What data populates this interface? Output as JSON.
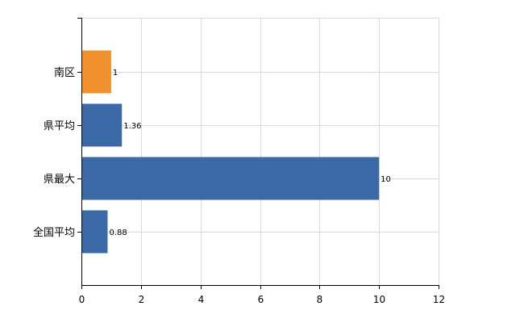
{
  "chart_data": {
    "type": "bar",
    "orientation": "horizontal",
    "categories": [
      "南区",
      "県平均",
      "県最大",
      "全国平均"
    ],
    "values": [
      1,
      1.36,
      10,
      0.88
    ],
    "value_labels": [
      "1",
      "1.36",
      "10",
      "0.88"
    ],
    "bar_colors": [
      "#f0912e",
      "#3a69a6",
      "#3a69a6",
      "#3a69a6"
    ],
    "xlim": [
      0,
      12
    ],
    "x_ticks": [
      0,
      2,
      4,
      6,
      8,
      10,
      12
    ],
    "x_tick_labels": [
      "0",
      "2",
      "4",
      "6",
      "8",
      "10",
      "12"
    ],
    "grid": true,
    "title": "",
    "xlabel": "",
    "ylabel": ""
  }
}
